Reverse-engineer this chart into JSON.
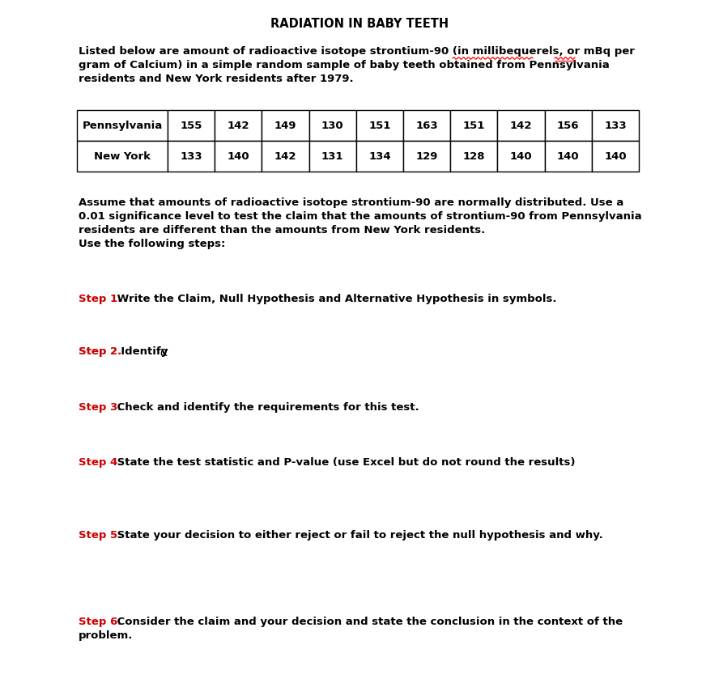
{
  "title": "RADIATION IN BABY TEETH",
  "intro_lines": [
    "Listed below are amount of radioactive isotope strontium-90 (in millibequerels, or mBq per",
    "gram of Calcium) in a simple random sample of baby teeth obtained from Pennsylvania",
    "residents and New York residents after 1979."
  ],
  "table_row1_label": "Pennsylvania",
  "table_row1_values": [
    "155",
    "142",
    "149",
    "130",
    "151",
    "163",
    "151",
    "142",
    "156",
    "133"
  ],
  "table_row2_label": "New York",
  "table_row2_values": [
    "133",
    "140",
    "142",
    "131",
    "134",
    "129",
    "128",
    "140",
    "140",
    "140"
  ],
  "assume_lines": [
    "Assume that amounts of radioactive isotope strontium-90 are normally distributed. Use a",
    "0.01 significance level to test the claim that the amounts of strontium-90 from Pennsylvania",
    "residents are different than the amounts from New York residents.",
    "Use the following steps:"
  ],
  "step_labels": [
    "Step 1.",
    "Step 2.",
    "Step 3.",
    "Step 4.",
    "Step 5.",
    "Step 6."
  ],
  "step_texts": [
    " Write the Claim, Null Hypothesis and Alternative Hypothesis in symbols.",
    "  Identify α",
    " Check and identify the requirements for this test.",
    " State the test statistic and P-value (use Excel but do not round the results)",
    " State your decision to either reject or fail to reject the null hypothesis and why.",
    " Consider the claim and your decision and state the conclusion in the context of the problem."
  ],
  "step_text_line2": [
    "",
    "",
    "",
    "",
    "",
    "problem."
  ],
  "step_color": "#cc0000",
  "bg_color": "#ffffff",
  "text_color": "#000000",
  "title_fontsize": 10.5,
  "body_fontsize": 9.5,
  "table_fontsize": 9.5
}
